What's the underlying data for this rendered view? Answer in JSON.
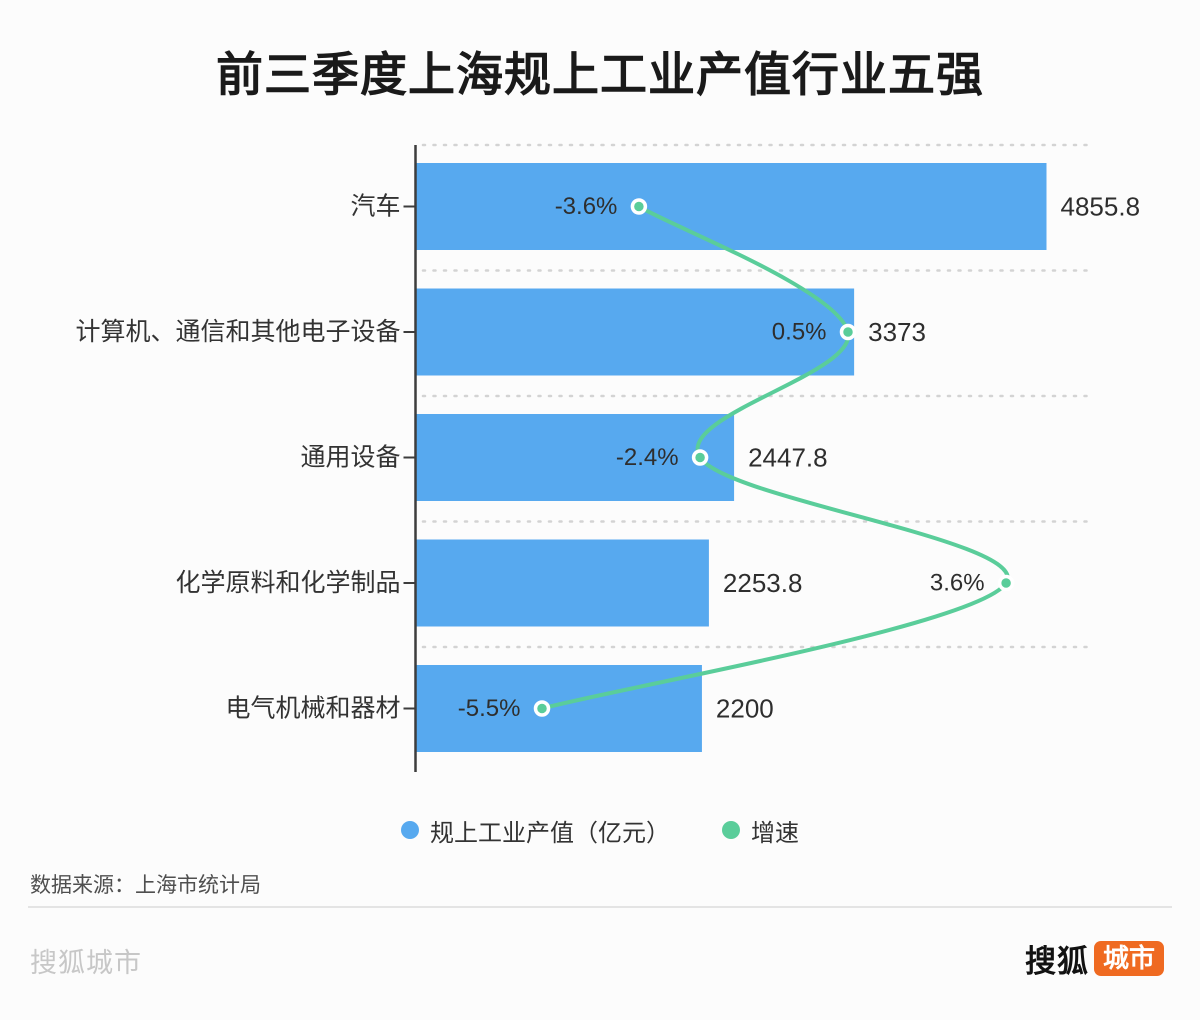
{
  "title": "前三季度上海规上工业产值行业五强",
  "chart_data": {
    "type": "bar",
    "orientation": "horizontal",
    "categories": [
      "汽车",
      "计算机、通信和其他电子设备",
      "通用设备",
      "化学原料和化学制品",
      "电气机械和器材"
    ],
    "series": [
      {
        "name": "规上工业产值（亿元）",
        "type": "bar",
        "values": [
          4855.8,
          3373,
          2447.8,
          2253.8,
          2200
        ],
        "labels": [
          "4855.8",
          "3373",
          "2447.8",
          "2253.8",
          "2200"
        ],
        "color": "#57a9ef"
      },
      {
        "name": "增速",
        "type": "line",
        "unit": "%",
        "values": [
          -3.6,
          0.5,
          -2.4,
          3.6,
          -5.5
        ],
        "labels": [
          "-3.6%",
          "0.5%",
          "-2.4%",
          "3.6%",
          "-5.5%"
        ],
        "color": "#5acd9a"
      }
    ],
    "xlim_bars": [
      0,
      4855.8
    ],
    "grid": "dotted horizontal separators per row",
    "legend_position": "bottom",
    "marker_style": "green dot with white ring"
  },
  "legend": {
    "items": [
      {
        "label": "规上工业产值（亿元）",
        "color": "#57a9ef"
      },
      {
        "label": "增速",
        "color": "#5acd9a"
      }
    ]
  },
  "footer": {
    "source": "数据来源：上海市统计局",
    "watermark": "搜狐城市",
    "logo": {
      "brand": "搜狐",
      "badge": "城市",
      "badge_color": "#ef6a21"
    }
  },
  "colors": {
    "bar": "#57a9ef",
    "growth_line": "#5acd9a",
    "axis": "#3d3d3d",
    "separator": "#d3d3d3",
    "title_text": "#1a1a1a",
    "label_text": "#333333",
    "background": "#fcfcfc"
  }
}
